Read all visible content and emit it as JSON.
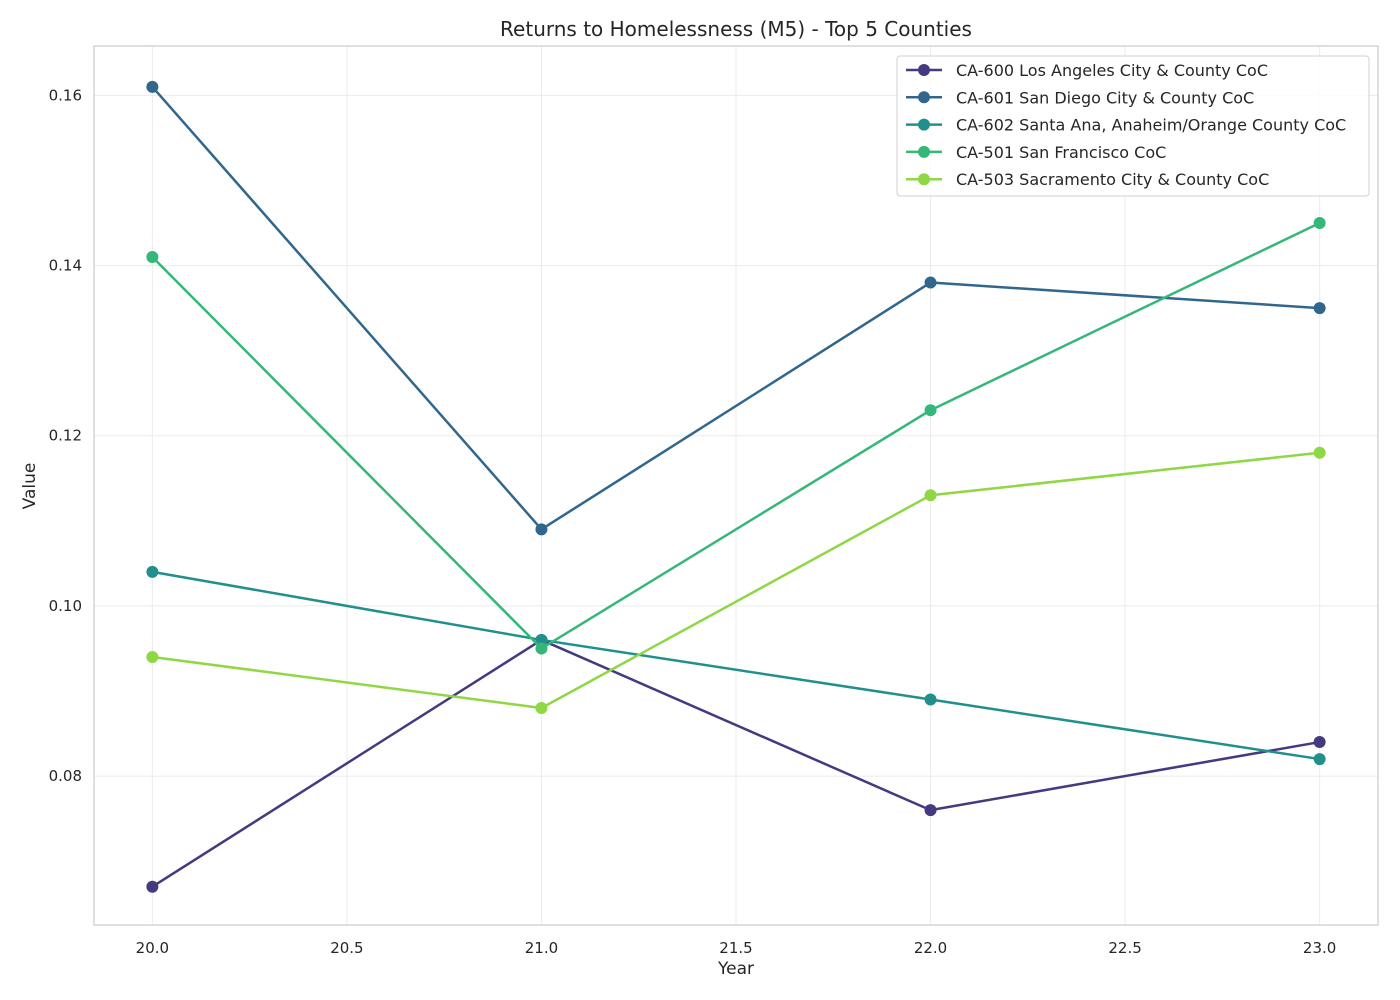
{
  "chart_data": {
    "type": "line",
    "title": "Returns to Homelessness (M5) - Top 5 Counties",
    "xlabel": "Year",
    "ylabel": "Value",
    "x": [
      20.0,
      21.0,
      22.0,
      23.0
    ],
    "xlim": [
      19.85,
      23.15
    ],
    "ylim": [
      0.0625,
      0.1658
    ],
    "xticks": [
      20.0,
      20.5,
      21.0,
      21.5,
      22.0,
      22.5,
      23.0
    ],
    "xtick_labels": [
      "20.0",
      "20.5",
      "21.0",
      "21.5",
      "22.0",
      "22.5",
      "23.0"
    ],
    "yticks": [
      0.08,
      0.1,
      0.12,
      0.14,
      0.16
    ],
    "ytick_labels": [
      "0.08",
      "0.10",
      "0.12",
      "0.14",
      "0.16"
    ],
    "grid": true,
    "legend_position": "top-right",
    "series": [
      {
        "name": "CA-600 Los Angeles City & County CoC",
        "color": "#433a80",
        "values": [
          0.067,
          0.096,
          0.076,
          0.084
        ]
      },
      {
        "name": "CA-601 San Diego City & County CoC",
        "color": "#31668d",
        "values": [
          0.161,
          0.109,
          0.138,
          0.135
        ]
      },
      {
        "name": "CA-602 Santa Ana, Anaheim/Orange County CoC",
        "color": "#21908d",
        "values": [
          0.104,
          0.096,
          0.089,
          0.082
        ]
      },
      {
        "name": "CA-501 San Francisco CoC",
        "color": "#35b779",
        "values": [
          0.141,
          0.095,
          0.123,
          0.145
        ]
      },
      {
        "name": "CA-503 Sacramento City & County CoC",
        "color": "#8fd744",
        "values": [
          0.094,
          0.088,
          0.113,
          0.118
        ]
      }
    ]
  }
}
